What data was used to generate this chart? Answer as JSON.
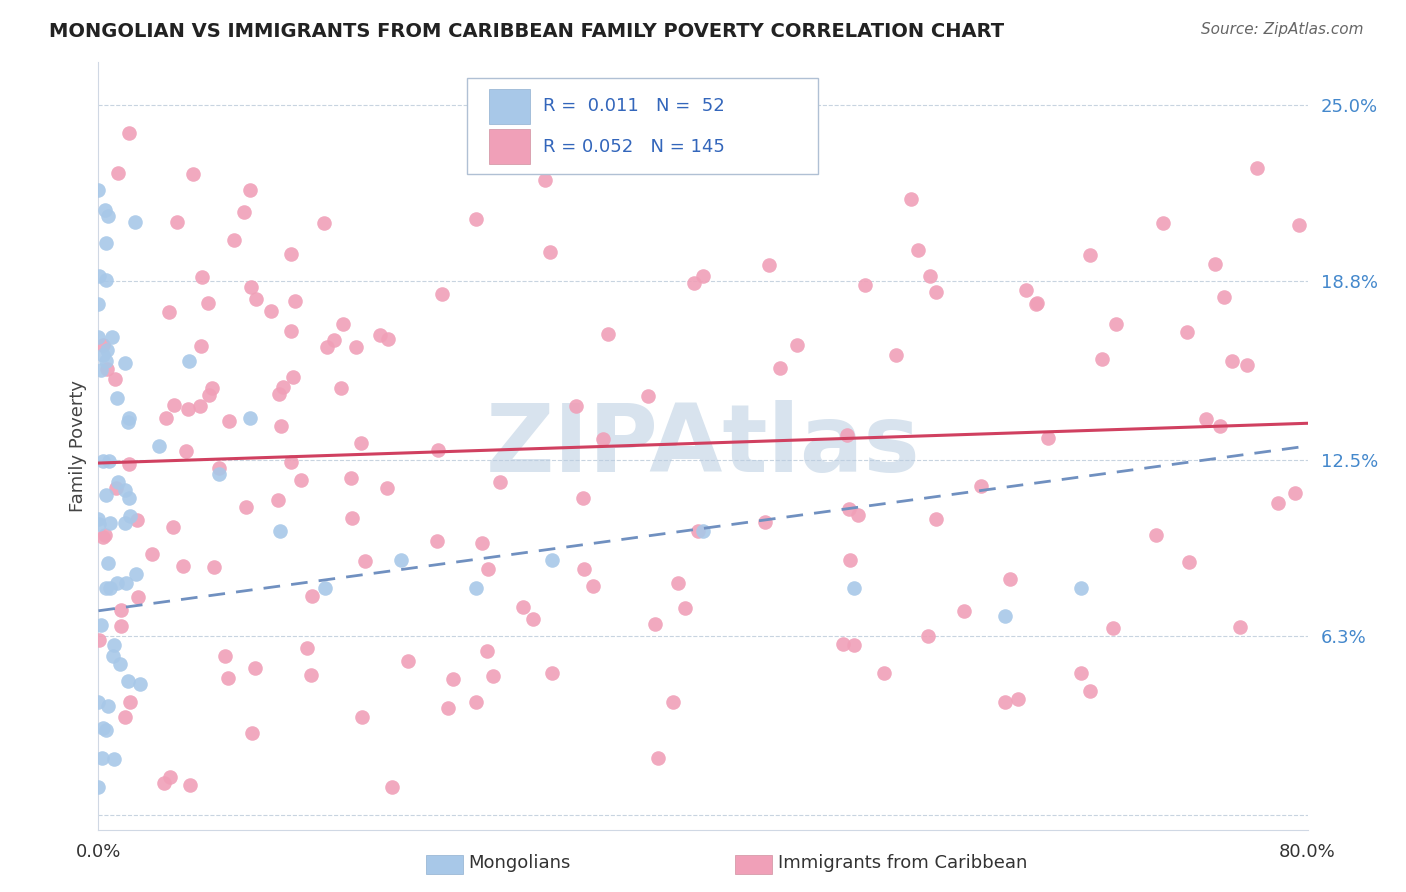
{
  "title": "MONGOLIAN VS IMMIGRANTS FROM CARIBBEAN FAMILY POVERTY CORRELATION CHART",
  "source": "Source: ZipAtlas.com",
  "ylabel": "Family Poverty",
  "y_ticks": [
    0.0,
    0.063,
    0.125,
    0.188,
    0.25
  ],
  "y_tick_labels": [
    "",
    "6.3%",
    "12.5%",
    "18.8%",
    "25.0%"
  ],
  "x_range": [
    0.0,
    0.8
  ],
  "y_range": [
    -0.005,
    0.265
  ],
  "blue_color": "#a8c8e8",
  "pink_color": "#f0a0b8",
  "line_blue": "#7090c0",
  "line_pink": "#d04060",
  "watermark": "ZIPAtlas",
  "watermark_color": "#b8cce0",
  "blue_trend_start": 0.072,
  "blue_trend_end": 0.13,
  "pink_trend_start": 0.124,
  "pink_trend_end": 0.138
}
